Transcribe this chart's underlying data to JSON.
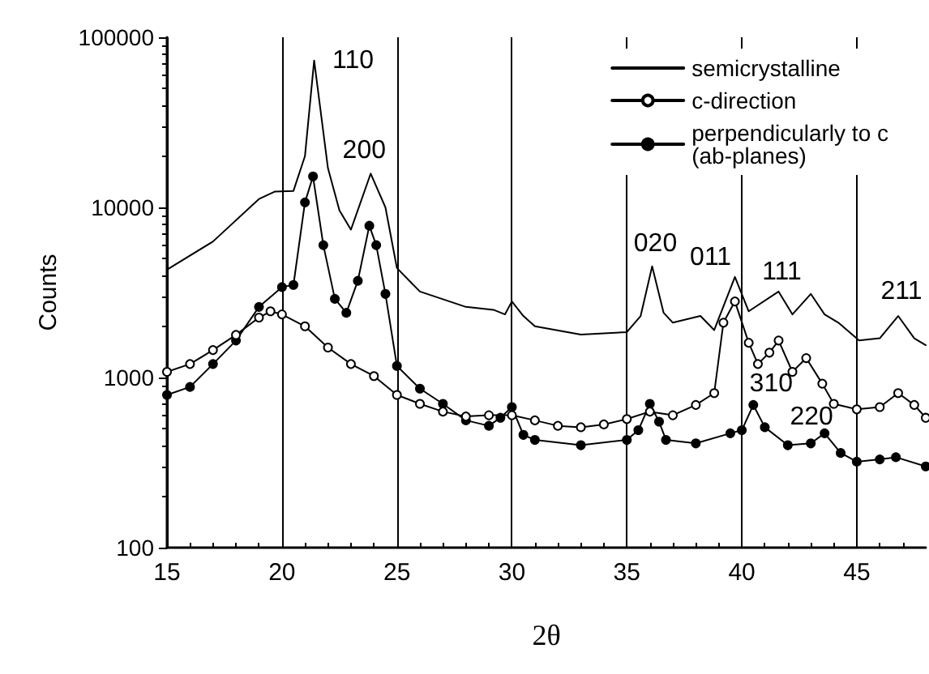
{
  "chart_data": {
    "type": "line",
    "xlabel": "2θ",
    "ylabel": "Counts",
    "log": "y",
    "xlim": [
      15,
      48
    ],
    "xticks": [
      15,
      20,
      25,
      30,
      35,
      40,
      45
    ],
    "ylim": [
      100,
      100000
    ],
    "yticks": [
      100,
      1000,
      10000,
      100000
    ],
    "grid": "x",
    "legend": "top right",
    "line_style": "solid",
    "series": [
      {
        "name": "semicrystalline",
        "color": "#000000",
        "marker": "none",
        "x": [
          15,
          17,
          19,
          19.7,
          20.5,
          21,
          21.4,
          22,
          22.5,
          23,
          23.86,
          24.5,
          25,
          26,
          28,
          29.2,
          29.7,
          30,
          30.5,
          31,
          33,
          35,
          35.6,
          36.1,
          36.6,
          37,
          38.2,
          38.8,
          39.7,
          40.3,
          41.6,
          42.2,
          43,
          43.6,
          44.2,
          45.1,
          46,
          46.8,
          47.5,
          48
        ],
        "values": [
          4300,
          6300,
          11200,
          12400,
          12500,
          20000,
          73000,
          17000,
          9600,
          7400,
          15800,
          10000,
          4400,
          3200,
          2600,
          2500,
          2350,
          2800,
          2300,
          2000,
          1790,
          1850,
          2300,
          4500,
          2400,
          2100,
          2300,
          1900,
          3900,
          2450,
          3200,
          2350,
          3100,
          2350,
          2100,
          1650,
          1700,
          2300,
          1700,
          1550
        ]
      },
      {
        "name": "c-direction",
        "color": "#000000",
        "marker": "circle",
        "x": [
          15,
          16,
          17,
          18,
          19,
          19.5,
          20,
          21,
          22,
          23,
          24,
          25,
          26,
          27,
          28,
          29,
          30,
          31,
          32,
          33,
          34,
          35,
          36,
          37,
          38,
          38.8,
          39.2,
          39.7,
          40.3,
          40.7,
          41.2,
          41.6,
          42.2,
          42.8,
          43.5,
          44,
          45,
          46,
          46.8,
          47.5,
          48
        ],
        "values": [
          1080,
          1200,
          1450,
          1780,
          2250,
          2450,
          2350,
          2000,
          1500,
          1200,
          1020,
          790,
          700,
          630,
          590,
          600,
          600,
          560,
          520,
          510,
          530,
          570,
          630,
          600,
          690,
          810,
          2100,
          2800,
          1600,
          1200,
          1400,
          1650,
          1080,
          1300,
          920,
          700,
          650,
          670,
          810,
          690,
          580
        ]
      },
      {
        "name": "perpendicularly to c\n(ab-planes)",
        "color": "#000000",
        "marker": "circle",
        "x": [
          15,
          16,
          17,
          18,
          19,
          20,
          20.5,
          21,
          21.35,
          21.8,
          22.3,
          22.8,
          23.3,
          23.8,
          24.1,
          24.5,
          25,
          26,
          27,
          28,
          29,
          29.5,
          30,
          30.5,
          31,
          33,
          35,
          35.5,
          36,
          36.4,
          36.7,
          38,
          39.5,
          40,
          40.5,
          41,
          42,
          43,
          43.6,
          44.3,
          45,
          46,
          46.7,
          48
        ],
        "values": [
          790,
          880,
          1200,
          1650,
          2600,
          3400,
          3500,
          10700,
          15200,
          6000,
          2900,
          2400,
          3700,
          7800,
          6000,
          3100,
          1170,
          860,
          700,
          560,
          520,
          580,
          670,
          460,
          430,
          400,
          430,
          490,
          700,
          550,
          430,
          410,
          470,
          490,
          690,
          510,
          400,
          410,
          470,
          360,
          320,
          330,
          340,
          300
        ]
      }
    ],
    "annotations": [
      {
        "text": "110",
        "x": 21.4,
        "y": 73000
      },
      {
        "text": "200",
        "x": 23.86,
        "y": 15800
      },
      {
        "text": "020",
        "x": 36.1,
        "y": 4500
      },
      {
        "text": "011",
        "x": 39.7,
        "y": 3900
      },
      {
        "text": "111",
        "x": 41.6,
        "y": 3200
      },
      {
        "text": "211",
        "x": 46.8,
        "y": 2300
      },
      {
        "text": "310",
        "x": 40.5,
        "y": 690
      },
      {
        "text": "220",
        "x": 43.6,
        "y": 470
      }
    ]
  }
}
